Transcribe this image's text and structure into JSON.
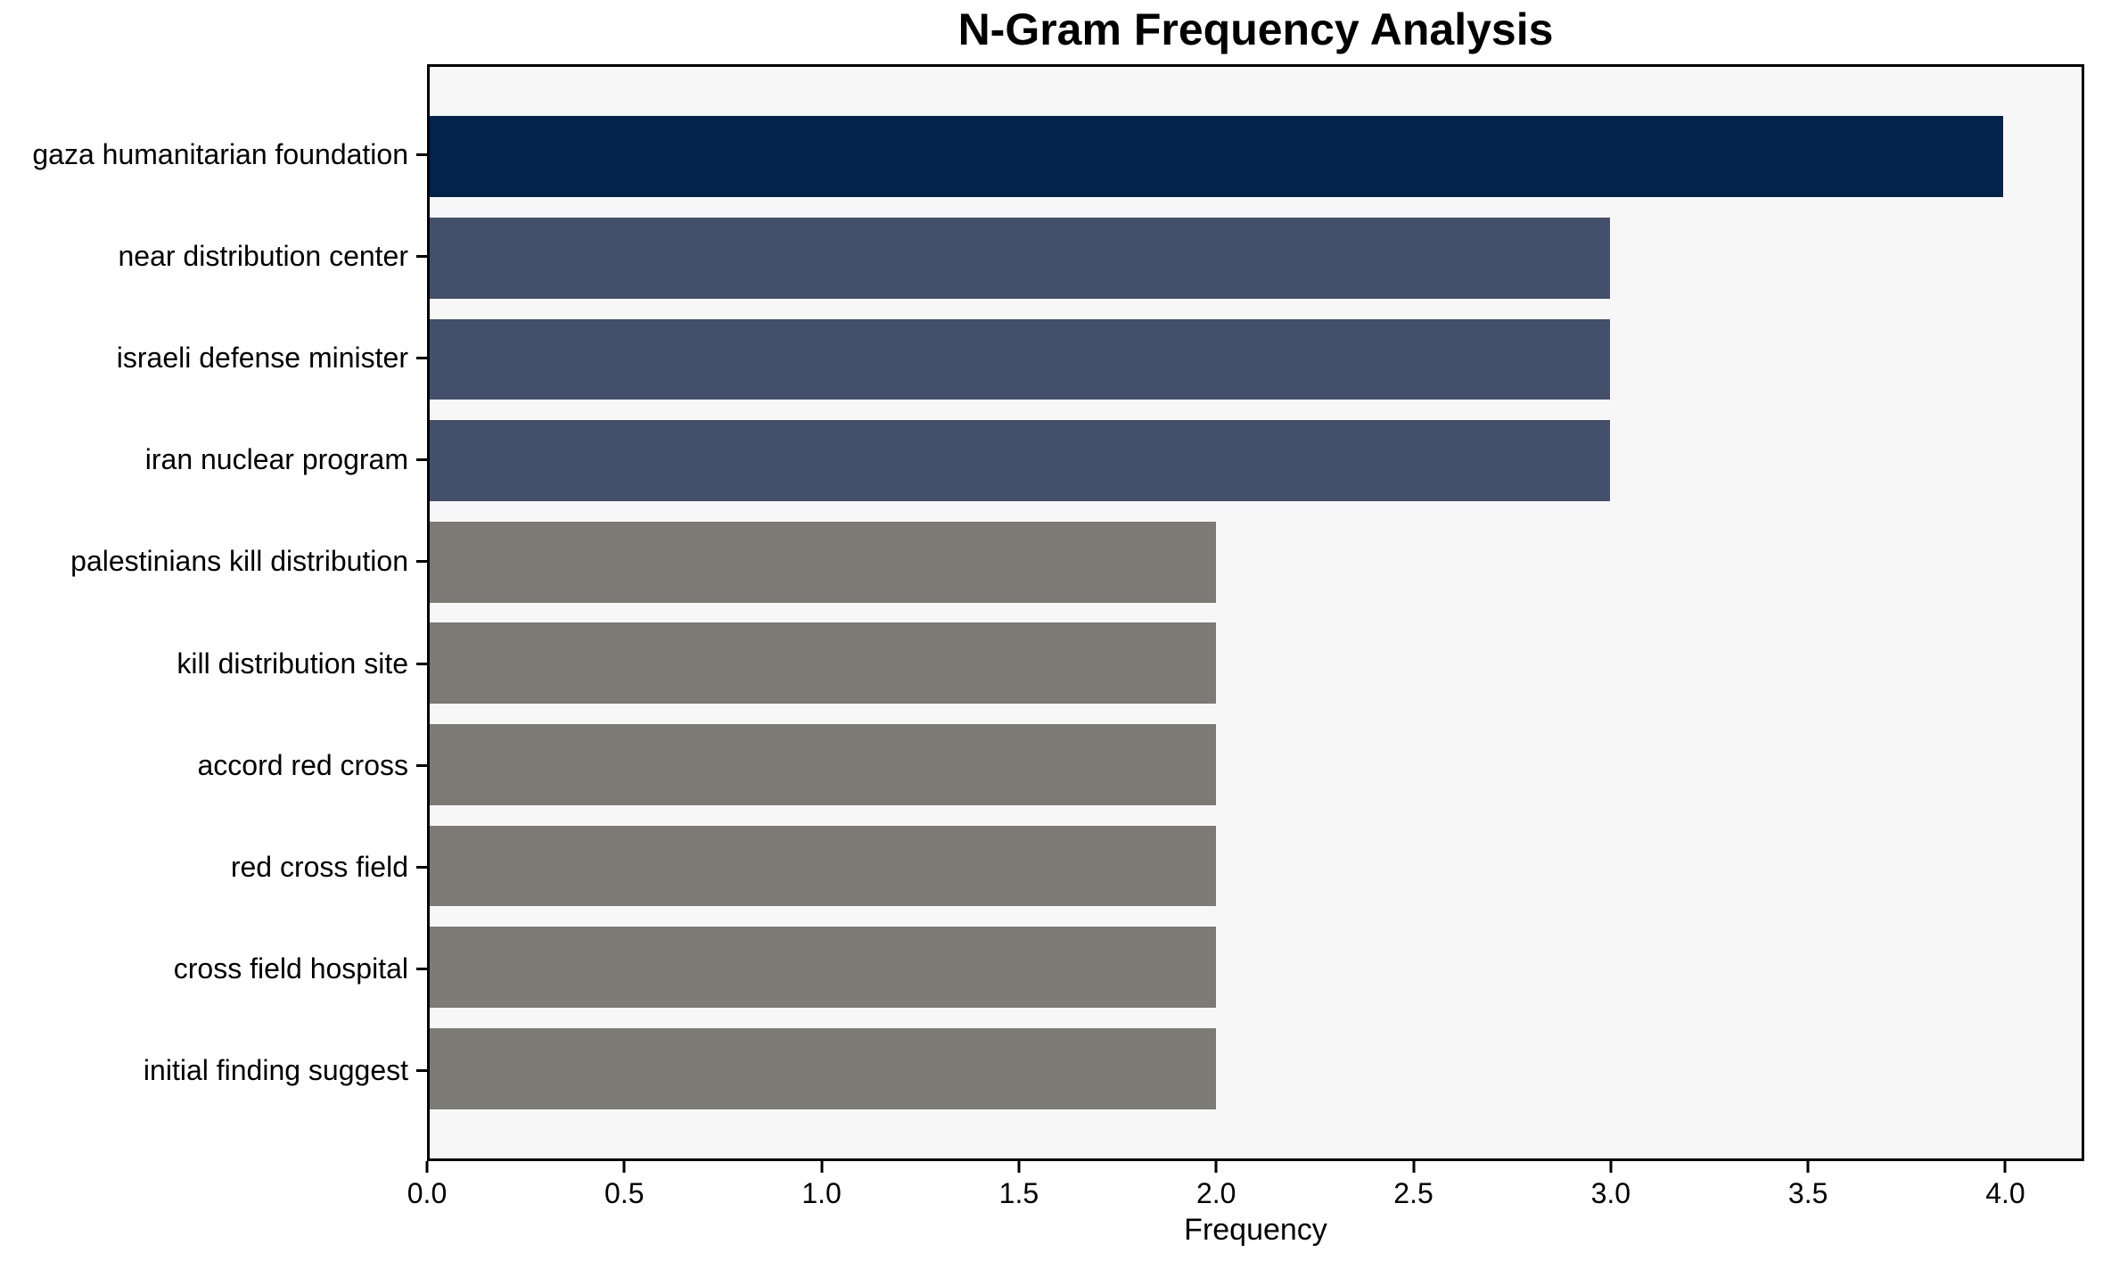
{
  "chart_data": {
    "type": "bar",
    "orientation": "horizontal",
    "title": "N-Gram Frequency Analysis",
    "xlabel": "Frequency",
    "ylabel": "",
    "categories": [
      "gaza humanitarian foundation",
      "near distribution center",
      "israeli defense minister",
      "iran nuclear program",
      "palestinians kill distribution",
      "kill distribution site",
      "accord red cross",
      "red cross field",
      "cross field hospital",
      "initial finding suggest"
    ],
    "values": [
      4,
      3,
      3,
      3,
      2,
      2,
      2,
      2,
      2,
      2
    ],
    "bar_colors": [
      "#02234C",
      "#444F6B",
      "#444F6B",
      "#444F6B",
      "#7B7A74",
      "#7B7A74",
      "#7B7A74",
      "#7B7A74",
      "#7B7A74",
      "#7B7A74"
    ],
    "xlim": [
      0,
      4.2
    ],
    "xticks": [
      0.0,
      0.5,
      1.0,
      1.5,
      2.0,
      2.5,
      3.0,
      3.5,
      4.0
    ],
    "xtick_labels": [
      "0.0",
      "0.5",
      "1.0",
      "1.5",
      "2.0",
      "2.5",
      "3.0",
      "3.5",
      "4.0"
    ],
    "grid": false,
    "legend_position": "none",
    "plot_background": "#F7F7F7",
    "figure_background": "#FFFFFF",
    "axis_color": "#000000",
    "text_color": "#000000",
    "bar_height_ratio": 0.8
  }
}
